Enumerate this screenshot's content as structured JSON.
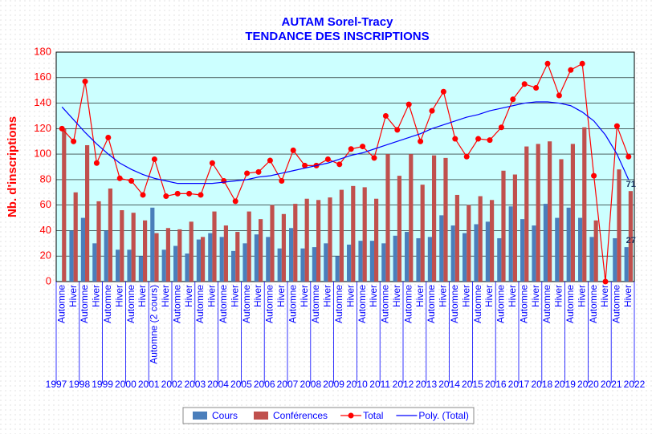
{
  "chart_data": {
    "type": "bar_line",
    "title": "AUTAM Sorel-Tracy",
    "subtitle": "TENDANCE DES INSCRIPTIONS",
    "y_label": "Nb. d'inscriptions",
    "categories": [
      "Automne",
      "Hiver",
      "Automne",
      "Hiver",
      "Automne",
      "Hiver",
      "Automne",
      "Hiver",
      "Automne (2 cours)",
      "Hiver",
      "Automne",
      "Hiver",
      "Automne",
      "Hiver",
      "Automne",
      "Hiver",
      "Automne",
      "Hiver",
      "Automne",
      "Hiver",
      "Automne",
      "Hiver",
      "Automne",
      "Hiver",
      "Automne",
      "Hiver",
      "Automne",
      "Hiver",
      "Automne",
      "Hiver",
      "Automne",
      "Hiver",
      "Automne",
      "Hiver",
      "Automne",
      "Hiver",
      "Automne",
      "Hiver",
      "Automne",
      "Hiver",
      "Automne",
      "Hiver",
      "Automne",
      "Hiver",
      "Automne",
      "Hiver",
      "Automne",
      "Hiver",
      "Automne",
      "Hiver"
    ],
    "years": [
      "1997",
      "1998",
      "1999",
      "2000",
      "2001",
      "2002",
      "2003",
      "2004",
      "2005",
      "2006",
      "2007",
      "2008",
      "2009",
      "2010",
      "2011",
      "2012",
      "2013",
      "2014",
      "2015",
      "2016",
      "2017",
      "2018",
      "2019",
      "2020",
      "2021",
      "2022"
    ],
    "series": [
      {
        "name": "Cours",
        "kind": "bar",
        "color": "#4a7ebb",
        "values": [
          0,
          40,
          50,
          30,
          40,
          25,
          25,
          20,
          58,
          25,
          28,
          22,
          33,
          38,
          35,
          24,
          30,
          37,
          35,
          26,
          42,
          26,
          27,
          30,
          20,
          29,
          32,
          32,
          30,
          36,
          39,
          34,
          35,
          52,
          44,
          38,
          45,
          47,
          34,
          59,
          49,
          44,
          61,
          50,
          58,
          50,
          35,
          0,
          34,
          27
        ]
      },
      {
        "name": "Conférences",
        "kind": "bar",
        "color": "#c0504d",
        "values": [
          120,
          70,
          107,
          63,
          73,
          56,
          54,
          48,
          38,
          42,
          41,
          47,
          35,
          55,
          44,
          39,
          55,
          49,
          60,
          53,
          61,
          65,
          64,
          66,
          72,
          75,
          74,
          65,
          100,
          83,
          100,
          76,
          99,
          97,
          68,
          60,
          67,
          64,
          87,
          84,
          106,
          108,
          110,
          96,
          108,
          121,
          48,
          0,
          88,
          71
        ]
      },
      {
        "name": "Total",
        "kind": "line-dot",
        "color": "#ff0000",
        "values": [
          120,
          110,
          157,
          93,
          113,
          81,
          79,
          68,
          96,
          67,
          69,
          69,
          68,
          93,
          79,
          63,
          85,
          86,
          95,
          79,
          103,
          91,
          91,
          96,
          92,
          104,
          106,
          97,
          130,
          119,
          139,
          110,
          134,
          149,
          112,
          98,
          112,
          111,
          121,
          143,
          155,
          152,
          171,
          146,
          166,
          171,
          83,
          0,
          122,
          98
        ]
      },
      {
        "name": "Poly. (Total)",
        "kind": "line",
        "color": "#0000ff",
        "values": [
          137,
          127,
          117,
          108,
          100,
          93,
          88,
          84,
          81,
          79,
          77,
          77,
          77,
          77,
          78,
          79,
          80,
          82,
          83,
          85,
          87,
          89,
          91,
          93,
          96,
          99,
          101,
          104,
          107,
          110,
          113,
          116,
          120,
          123,
          126,
          129,
          131,
          134,
          136,
          138,
          140,
          141,
          141,
          140,
          138,
          133,
          126,
          115,
          100,
          80
        ]
      }
    ],
    "ylim": [
      0,
      180
    ],
    "yticks": [
      0,
      20,
      40,
      60,
      80,
      100,
      120,
      140,
      160,
      180
    ],
    "grid": true
  }
}
